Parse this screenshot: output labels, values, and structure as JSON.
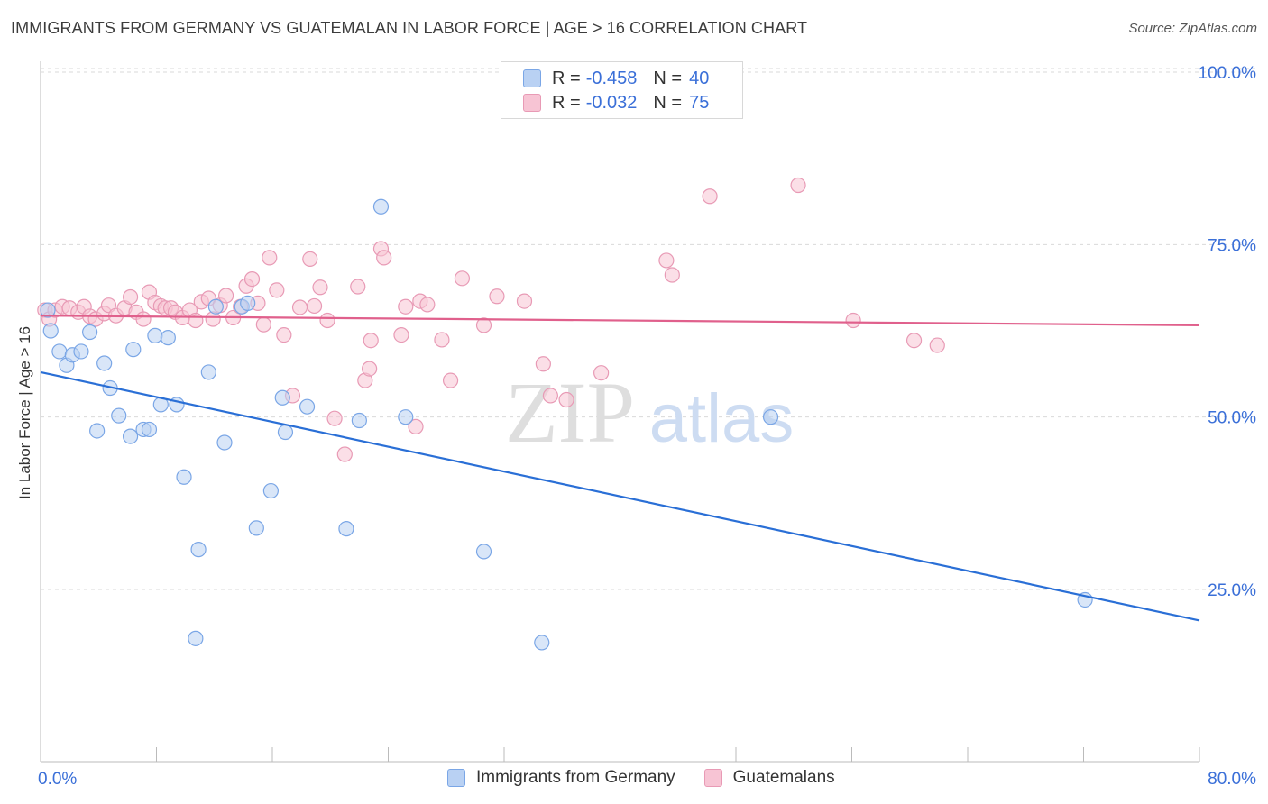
{
  "header": {
    "title": "IMMIGRANTS FROM GERMANY VS GUATEMALAN IN LABOR FORCE | AGE > 16 CORRELATION CHART",
    "source": "Source: ZipAtlas.com"
  },
  "legend": {
    "rows": [
      {
        "r_label": "R = ",
        "r_value": "-0.458",
        "n_label": "N = ",
        "n_value": "40"
      },
      {
        "r_label": "R = ",
        "r_value": "-0.032",
        "n_label": "N = ",
        "n_value": "75"
      }
    ],
    "series_labels": [
      "Immigrants from Germany",
      "Guatemalans"
    ]
  },
  "watermark": {
    "zip": "ZIP",
    "atlas": "atlas"
  },
  "colors": {
    "blue_fill": "#b9d1f3",
    "blue_stroke": "#7aa6e6",
    "blue_line": "#2a6fd6",
    "pink_fill": "#f7c4d4",
    "pink_stroke": "#e89ab5",
    "pink_line": "#e0608c",
    "axis_label": "#3a6fd8",
    "grid": "#d9d9d9"
  },
  "chart_data": {
    "type": "scatter",
    "title": "IMMIGRANTS FROM GERMANY VS GUATEMALAN IN LABOR FORCE | AGE > 16 CORRELATION CHART",
    "xlabel": "",
    "ylabel": "In Labor Force | Age > 16",
    "xlim": [
      0,
      80
    ],
    "ylim": [
      0,
      105
    ],
    "x_tick_labels": [
      "0.0%",
      "80.0%"
    ],
    "y_ticks": [
      25,
      50,
      75,
      100
    ],
    "y_tick_labels": [
      "25.0%",
      "50.0%",
      "75.0%",
      "100.0%"
    ],
    "grid": true,
    "legend_position": "top-center",
    "series": [
      {
        "name": "Immigrants from Germany",
        "r": -0.458,
        "n": 40,
        "trend": {
          "x": [
            0,
            80
          ],
          "y": [
            56.5,
            20.5
          ]
        },
        "points": [
          [
            0.5,
            65.5
          ],
          [
            0.7,
            62.5
          ],
          [
            1.3,
            59.5
          ],
          [
            1.8,
            57.5
          ],
          [
            2.2,
            59.0
          ],
          [
            2.8,
            59.5
          ],
          [
            3.4,
            62.3
          ],
          [
            4.4,
            57.8
          ],
          [
            4.8,
            54.2
          ],
          [
            5.4,
            50.2
          ],
          [
            3.9,
            48.0
          ],
          [
            6.2,
            47.2
          ],
          [
            6.4,
            59.8
          ],
          [
            7.1,
            48.2
          ],
          [
            7.5,
            48.2
          ],
          [
            7.9,
            61.8
          ],
          [
            8.3,
            51.8
          ],
          [
            8.8,
            61.5
          ],
          [
            9.4,
            51.8
          ],
          [
            9.9,
            41.3
          ],
          [
            10.7,
            17.9
          ],
          [
            10.9,
            30.8
          ],
          [
            11.6,
            56.5
          ],
          [
            12.1,
            66.0
          ],
          [
            12.7,
            46.3
          ],
          [
            13.9,
            66.0
          ],
          [
            14.3,
            66.5
          ],
          [
            14.9,
            33.9
          ],
          [
            15.9,
            39.3
          ],
          [
            16.7,
            52.8
          ],
          [
            16.9,
            47.8
          ],
          [
            18.4,
            51.5
          ],
          [
            21.1,
            33.8
          ],
          [
            22.0,
            49.5
          ],
          [
            23.5,
            80.5
          ],
          [
            25.2,
            50.0
          ],
          [
            30.6,
            30.5
          ],
          [
            34.6,
            17.3
          ],
          [
            50.4,
            50.0
          ],
          [
            72.1,
            23.5
          ]
        ]
      },
      {
        "name": "Guatemalans",
        "r": -0.032,
        "n": 75,
        "trend": {
          "x": [
            0,
            80
          ],
          "y": [
            64.7,
            63.3
          ]
        },
        "points": [
          [
            0.3,
            65.5
          ],
          [
            0.6,
            64.2
          ],
          [
            1.0,
            65.5
          ],
          [
            1.5,
            66.0
          ],
          [
            2.0,
            65.8
          ],
          [
            2.6,
            65.2
          ],
          [
            3.0,
            66.0
          ],
          [
            3.4,
            64.6
          ],
          [
            3.8,
            64.2
          ],
          [
            4.4,
            65.0
          ],
          [
            4.7,
            66.2
          ],
          [
            5.2,
            64.7
          ],
          [
            5.8,
            65.8
          ],
          [
            6.2,
            67.4
          ],
          [
            6.6,
            65.2
          ],
          [
            7.1,
            64.2
          ],
          [
            7.5,
            68.1
          ],
          [
            7.9,
            66.6
          ],
          [
            8.3,
            66.1
          ],
          [
            8.6,
            65.8
          ],
          [
            9.0,
            65.8
          ],
          [
            9.3,
            65.2
          ],
          [
            9.8,
            64.4
          ],
          [
            10.3,
            65.5
          ],
          [
            10.7,
            64.0
          ],
          [
            11.1,
            66.7
          ],
          [
            11.6,
            67.2
          ],
          [
            11.9,
            64.2
          ],
          [
            12.4,
            66.2
          ],
          [
            12.8,
            67.6
          ],
          [
            13.3,
            64.4
          ],
          [
            13.8,
            66.0
          ],
          [
            14.2,
            69.0
          ],
          [
            14.6,
            70.0
          ],
          [
            15.0,
            66.5
          ],
          [
            15.4,
            63.4
          ],
          [
            15.8,
            73.1
          ],
          [
            16.3,
            68.4
          ],
          [
            16.8,
            61.9
          ],
          [
            17.4,
            53.1
          ],
          [
            17.9,
            65.9
          ],
          [
            18.6,
            72.9
          ],
          [
            18.9,
            66.1
          ],
          [
            19.3,
            68.8
          ],
          [
            19.8,
            64.0
          ],
          [
            20.3,
            49.8
          ],
          [
            21.0,
            44.6
          ],
          [
            21.9,
            68.9
          ],
          [
            22.4,
            55.3
          ],
          [
            22.7,
            57.0
          ],
          [
            22.8,
            61.1
          ],
          [
            23.5,
            74.4
          ],
          [
            23.7,
            73.1
          ],
          [
            24.9,
            61.9
          ],
          [
            25.2,
            66.0
          ],
          [
            25.9,
            48.6
          ],
          [
            26.2,
            66.8
          ],
          [
            26.7,
            66.3
          ],
          [
            27.7,
            61.2
          ],
          [
            28.3,
            55.3
          ],
          [
            29.1,
            70.1
          ],
          [
            30.6,
            63.3
          ],
          [
            31.5,
            67.5
          ],
          [
            33.4,
            66.8
          ],
          [
            34.7,
            57.7
          ],
          [
            35.2,
            53.1
          ],
          [
            36.3,
            52.5
          ],
          [
            38.7,
            56.4
          ],
          [
            43.2,
            72.7
          ],
          [
            43.6,
            70.6
          ],
          [
            46.2,
            82.0
          ],
          [
            52.3,
            83.6
          ],
          [
            56.1,
            64.0
          ],
          [
            60.3,
            61.1
          ],
          [
            61.9,
            60.4
          ]
        ]
      }
    ]
  }
}
